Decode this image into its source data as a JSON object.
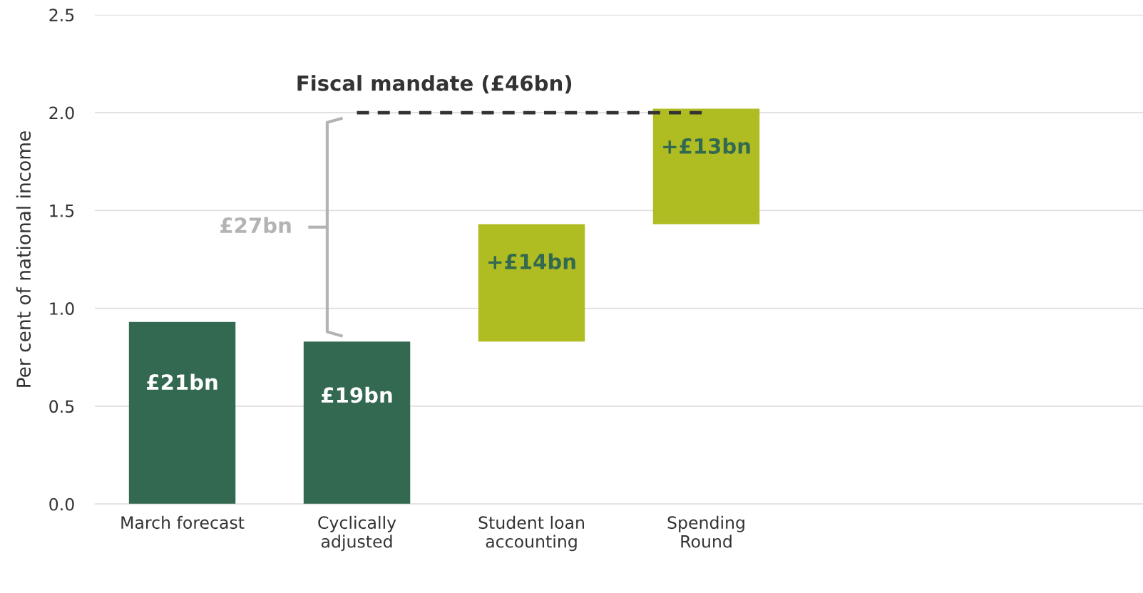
{
  "chart_data": {
    "type": "bar",
    "ylabel": "Per cent of national income",
    "categories": [
      "March forecast",
      "Cyclically\nadjusted",
      "Student loan\naccounting",
      "Spending\nRound",
      null,
      null
    ],
    "values": [
      0.93,
      0.83,
      0.6,
      0.59,
      null,
      null
    ],
    "base": [
      0,
      0,
      0.83,
      1.43,
      null,
      null
    ],
    "colors": [
      "#336950",
      "#336950",
      "#afbd22",
      "#afbd22",
      null,
      null
    ],
    "ylim": [
      0,
      2.5
    ],
    "yticks": [
      {
        "value": 0,
        "label": "0.0"
      },
      {
        "value": 0.5,
        "label": "0.5"
      },
      {
        "value": 1,
        "label": "1.0"
      },
      {
        "value": 1.5,
        "label": "1.5"
      },
      {
        "value": 2,
        "label": "2.0"
      },
      {
        "value": 2.5,
        "label": "2.5"
      }
    ],
    "grid": "y",
    "ref_lines": [
      {
        "axis": "y",
        "value": 2.0,
        "label": "Fiscal mandate (£46bn)",
        "color": "#333333",
        "line_style": "dashed"
      }
    ],
    "annotations": [
      "£27bn",
      "£21bn",
      "£19bn",
      "+£14bn",
      "+£13bn"
    ]
  }
}
